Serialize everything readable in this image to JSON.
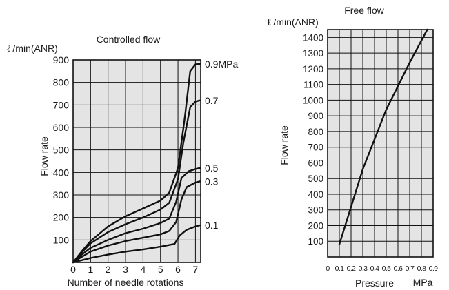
{
  "chart_data": [
    {
      "type": "line",
      "title": "Controlled flow",
      "unit_label": "ℓ /min(ANR)",
      "xlabel": "Number of needle rotations",
      "ylabel": "Flow rate",
      "xlim": [
        0,
        7.3
      ],
      "ylim": [
        0,
        900
      ],
      "x_ticks": [
        "0",
        "1",
        "2",
        "3",
        "4",
        "5",
        "6",
        "7"
      ],
      "y_ticks": [
        "100",
        "200",
        "300",
        "400",
        "500",
        "600",
        "700",
        "800",
        "900"
      ],
      "grid": true,
      "series": [
        {
          "name": "0.9MPa",
          "points": [
            [
              0,
              0
            ],
            [
              0.5,
              50
            ],
            [
              1,
              95
            ],
            [
              2,
              160
            ],
            [
              3,
              205
            ],
            [
              4,
              240
            ],
            [
              5,
              275
            ],
            [
              5.5,
              310
            ],
            [
              6,
              420
            ],
            [
              6.4,
              650
            ],
            [
              6.7,
              850
            ],
            [
              7,
              880
            ],
            [
              7.25,
              882
            ]
          ]
        },
        {
          "name": "0.7",
          "points": [
            [
              0,
              0
            ],
            [
              0.5,
              45
            ],
            [
              1,
              85
            ],
            [
              2,
              135
            ],
            [
              3,
              170
            ],
            [
              4,
              200
            ],
            [
              5,
              235
            ],
            [
              5.5,
              265
            ],
            [
              6,
              370
            ],
            [
              6.3,
              530
            ],
            [
              6.7,
              690
            ],
            [
              7,
              715
            ],
            [
              7.25,
              720
            ]
          ]
        },
        {
          "name": "0.5",
          "points": [
            [
              0,
              0
            ],
            [
              0.5,
              35
            ],
            [
              1,
              65
            ],
            [
              2,
              100
            ],
            [
              3,
              130
            ],
            [
              4,
              150
            ],
            [
              5,
              175
            ],
            [
              5.5,
              195
            ],
            [
              5.9,
              270
            ],
            [
              6.2,
              375
            ],
            [
              6.6,
              405
            ],
            [
              7,
              415
            ],
            [
              7.25,
              420
            ]
          ]
        },
        {
          "name": "0.3",
          "points": [
            [
              0,
              0
            ],
            [
              0.5,
              25
            ],
            [
              1,
              48
            ],
            [
              2,
              75
            ],
            [
              3,
              95
            ],
            [
              4,
              110
            ],
            [
              5,
              125
            ],
            [
              5.5,
              140
            ],
            [
              5.9,
              180
            ],
            [
              6.2,
              280
            ],
            [
              6.5,
              335
            ],
            [
              7,
              355
            ],
            [
              7.25,
              360
            ]
          ]
        },
        {
          "name": "0.1",
          "points": [
            [
              0,
              0
            ],
            [
              1,
              20
            ],
            [
              2,
              35
            ],
            [
              3,
              48
            ],
            [
              4,
              58
            ],
            [
              5,
              70
            ],
            [
              5.8,
              82
            ],
            [
              6.1,
              120
            ],
            [
              6.5,
              145
            ],
            [
              7,
              160
            ],
            [
              7.25,
              165
            ]
          ]
        }
      ]
    },
    {
      "type": "line",
      "title": "Free flow",
      "unit_label": "ℓ /min(ANR)",
      "xlabel": "Pressure",
      "x_unit": "MPa",
      "ylabel": "Flow rate",
      "xlim": [
        0,
        0.9
      ],
      "ylim": [
        0,
        1450
      ],
      "x_ticks": [
        "0",
        "0.1",
        "0.2",
        "0.3",
        "0.4",
        "0.5",
        "0.6",
        "0.7",
        "0.8",
        "0.9"
      ],
      "y_ticks": [
        "100",
        "200",
        "300",
        "400",
        "500",
        "600",
        "700",
        "800",
        "900",
        "1000",
        "1100",
        "1200",
        "1300",
        "1400"
      ],
      "grid": true,
      "series": [
        {
          "name": "",
          "points": [
            [
              0.1,
              80
            ],
            [
              0.3,
              560
            ],
            [
              0.5,
              940
            ],
            [
              0.7,
              1240
            ],
            [
              0.85,
              1450
            ]
          ]
        }
      ]
    }
  ]
}
